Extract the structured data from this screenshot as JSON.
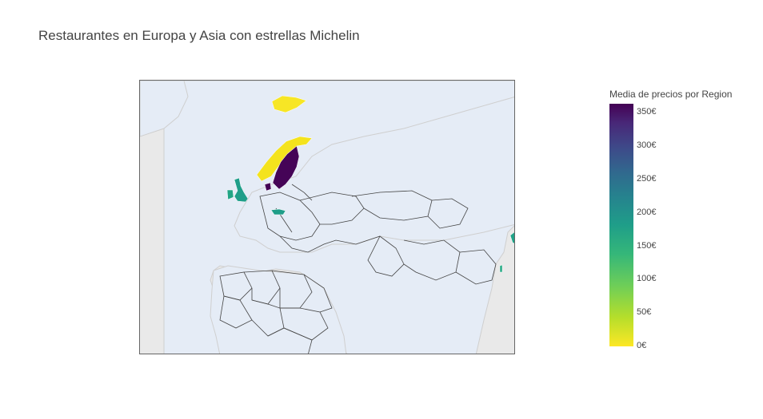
{
  "title": "Restaurantes en Europa y Asia con estrellas Michelin",
  "colorbar": {
    "title": "Media de precios por Region",
    "ticks": [
      "350€",
      "300€",
      "250€",
      "200€",
      "150€",
      "100€",
      "50€",
      "0€"
    ],
    "scale": "Viridis (reversed)",
    "range": [
      0,
      365
    ]
  },
  "colors": {
    "land": "#e5ecf6",
    "ocean": "#e9e9e9",
    "border": "#444444",
    "coast": "#cfcfcf"
  },
  "regions": [
    {
      "name": "Iceland",
      "level": "low"
    },
    {
      "name": "Norway",
      "level": "low"
    },
    {
      "name": "Sweden",
      "level": "high"
    },
    {
      "name": "Denmark",
      "level": "high"
    },
    {
      "name": "United Kingdom",
      "level": "mid"
    },
    {
      "name": "Ireland",
      "level": "mid"
    },
    {
      "name": "Austria",
      "level": "mid"
    },
    {
      "name": "Japan",
      "level": "mid"
    },
    {
      "name": "Taiwan",
      "level": "mid"
    }
  ]
}
